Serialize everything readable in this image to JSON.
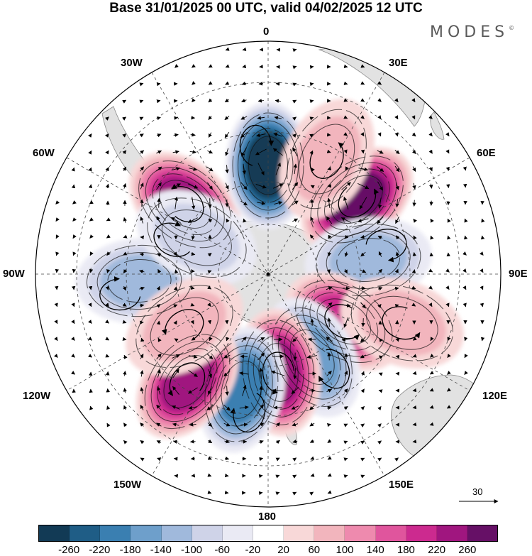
{
  "title": "Base 31/01/2025 00 UTC, valid 04/02/2025 12 UTC",
  "brand": "MODES",
  "brand_mark": "©",
  "longitude_labels": {
    "top": "0",
    "top_left": "30W",
    "top_right": "30E",
    "upper_left": "60W",
    "upper_right": "60E",
    "left": "90W",
    "right": "90E",
    "lower_left": "120W",
    "lower_right": "120E",
    "bottom_left": "150W",
    "bottom_right": "150E",
    "bottom": "180"
  },
  "projection": "south-polar-stereographic",
  "wind_reference_arrow": {
    "value": "30",
    "icon": "arrow-right-icon"
  },
  "colorbar": {
    "colors": [
      "#123a55",
      "#1f5d86",
      "#3a7fb1",
      "#6e9fcb",
      "#a0b9dc",
      "#cfd3e8",
      "#eaeaf4",
      "#ffffff",
      "#f8d8d8",
      "#f2b5bd",
      "#ee8aae",
      "#e0559d",
      "#cc2a8f",
      "#a0167f",
      "#661066"
    ],
    "ticks": [
      "-260",
      "-220",
      "-180",
      "-140",
      "-100",
      "-60",
      "-20",
      "20",
      "60",
      "100",
      "140",
      "180",
      "220",
      "260"
    ]
  },
  "anomaly_centers": [
    {
      "lon": -50,
      "lat": -40,
      "value": 240
    },
    {
      "lon": 0,
      "lat": -40,
      "value": -260
    },
    {
      "lon": 50,
      "lat": -37,
      "value": 260
    },
    {
      "lon": 82,
      "lat": -43,
      "value": -120
    },
    {
      "lon": 122,
      "lat": -48,
      "value": 190
    },
    {
      "lon": 152,
      "lat": -46,
      "value": -170
    },
    {
      "lon": 174,
      "lat": -44,
      "value": 240
    },
    {
      "lon": -167,
      "lat": -36,
      "value": -200
    },
    {
      "lon": -143,
      "lat": -30,
      "value": 220
    },
    {
      "lon": -93,
      "lat": -32,
      "value": -100
    },
    {
      "lon": -63,
      "lat": -52,
      "value": -90
    },
    {
      "lon": -122,
      "lat": -44,
      "value": 70
    },
    {
      "lon": 27,
      "lat": -32,
      "value": 60
    },
    {
      "lon": 110,
      "lat": -27,
      "value": 70
    }
  ]
}
